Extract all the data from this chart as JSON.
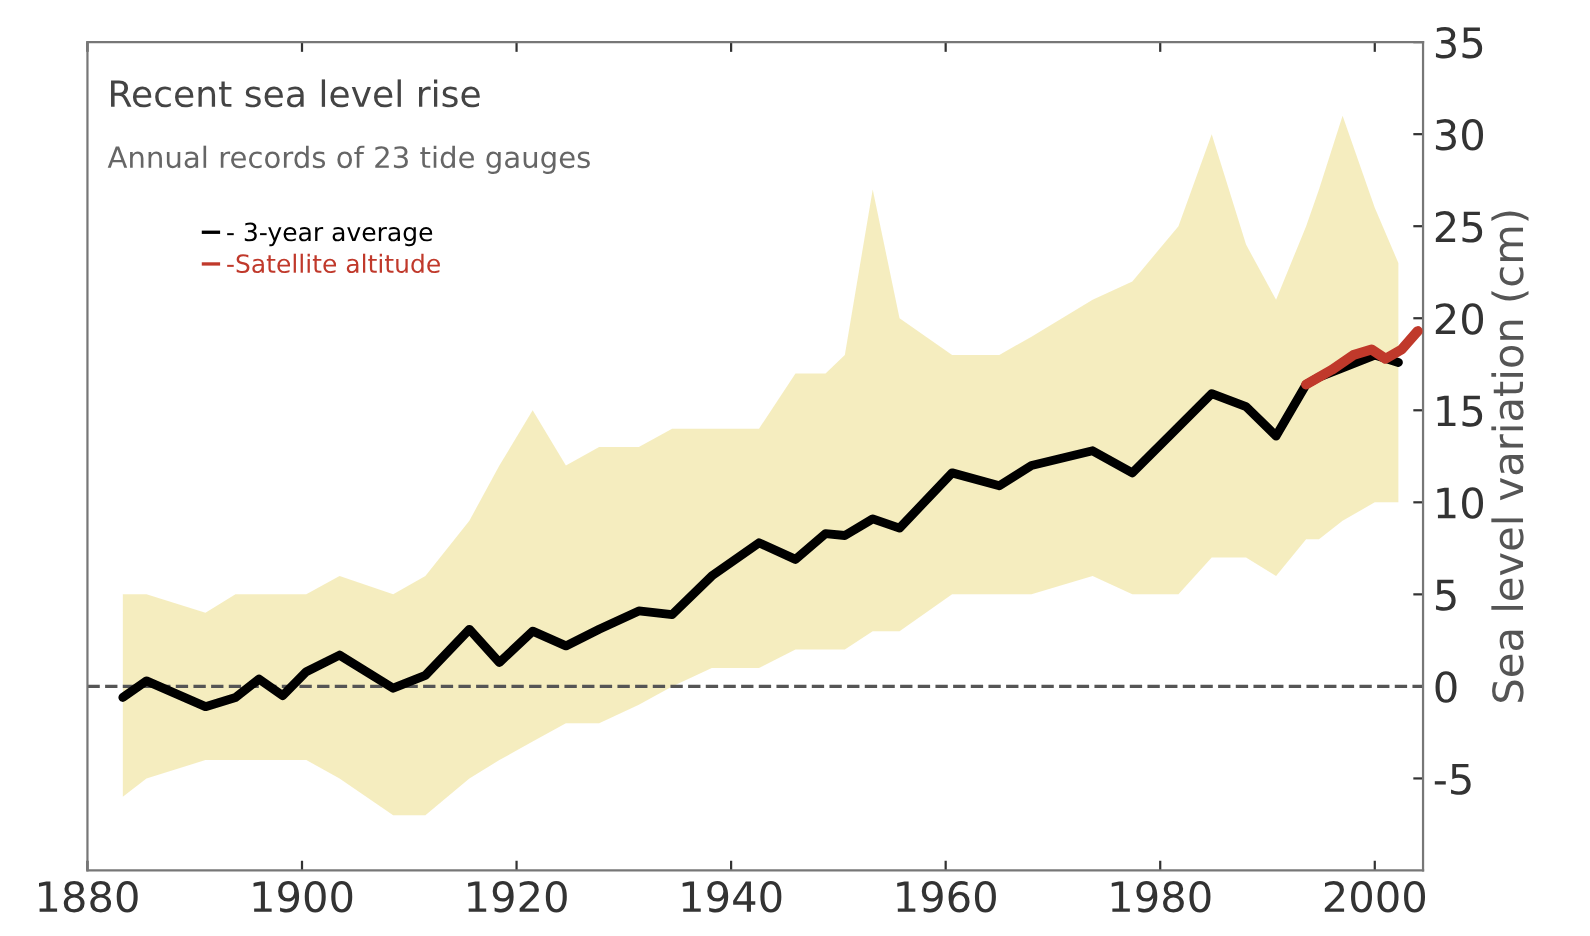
{
  "chart_data": {
    "type": "line",
    "title": "Recent sea level rise",
    "ylabel": "Sea level variation (cm)",
    "annotations": [
      "Annual records of 23 tide gauges"
    ],
    "series": [
      {
        "name": "- 3-year average",
        "color": "#000000",
        "x": [
          1883.3,
          1885.5,
          1891,
          1893.8,
          1896,
          1898.2,
          1900.4,
          1903.5,
          1908.5,
          1911.5,
          1915.6,
          1918.4,
          1921.5,
          1924.6,
          1927.7,
          1931.4,
          1934.5,
          1938.2,
          1942.6,
          1946,
          1948.8,
          1950.6,
          1953.2,
          1955.7,
          1960.6,
          1965,
          1968,
          1973.7,
          1977.4,
          1981.7,
          1984.8,
          1988,
          1990.8,
          1993.6,
          1994.8,
          1997,
          2000,
          2002.2
        ],
        "values": [
          -0.6,
          0.3,
          -1.1,
          -0.6,
          0.4,
          -0.5,
          0.8,
          1.7,
          -0.1,
          0.6,
          3.1,
          1.3,
          3,
          2.2,
          3.1,
          4.1,
          3.9,
          6,
          7.8,
          6.9,
          8.3,
          8.2,
          9.1,
          8.6,
          11.6,
          10.9,
          12,
          12.8,
          11.6,
          14.1,
          15.9,
          15.2,
          13.6,
          16.4,
          16.8,
          17.3,
          18,
          17.6
        ],
        "lower": [
          -6,
          -5,
          -4,
          -4,
          -4,
          -4,
          -4,
          -5,
          -7,
          -7,
          -5,
          -4,
          -3,
          -2,
          -2,
          -1,
          0,
          1,
          1,
          2,
          2,
          2,
          3,
          3,
          5,
          5,
          5,
          6,
          5,
          5,
          7,
          7,
          6,
          8,
          8,
          9,
          10,
          10
        ],
        "upper": [
          5,
          5,
          4,
          5,
          5,
          5,
          5,
          6,
          5,
          6,
          9,
          12,
          15,
          12,
          13,
          13,
          14,
          14,
          14,
          17,
          17,
          18,
          27,
          20,
          18,
          18,
          19,
          21,
          22,
          25,
          30,
          24,
          21,
          25,
          27,
          31,
          26,
          23
        ]
      },
      {
        "name": "-Satellite altitude",
        "color": "#c0392b",
        "x": [
          1993.6,
          1996,
          1998,
          1999.7,
          2001,
          2002.5,
          2004
        ],
        "values": [
          16.4,
          17.2,
          18,
          18.3,
          17.8,
          18.3,
          19.3
        ]
      }
    ],
    "xlim": [
      1880,
      2004.5
    ],
    "ylim": [
      -10,
      35
    ],
    "xticks": [
      1880,
      1900,
      1920,
      1940,
      1960,
      1980,
      2000
    ],
    "yticks": [
      -5,
      0,
      5,
      10,
      15,
      20,
      25,
      30,
      35
    ],
    "ref_lines": [
      {
        "axis": "y",
        "value": 0,
        "color": "#555555",
        "line_style": "dashed"
      }
    ],
    "legend": "top left",
    "grid": false
  }
}
